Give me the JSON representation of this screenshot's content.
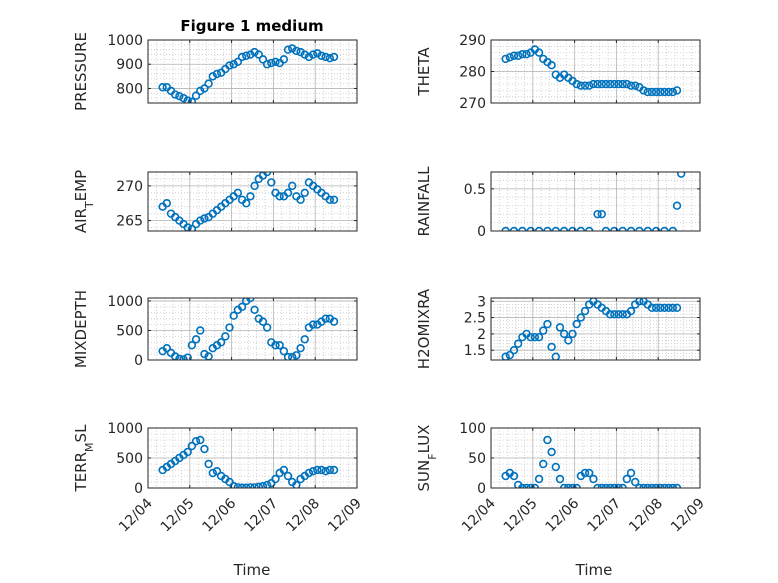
{
  "title": "Figure 1 medium",
  "colors": {
    "marker": "#0072BD",
    "grid": "#c8c8c8",
    "axis": "#262626"
  },
  "xaxis": {
    "label": "Time",
    "range": [
      0,
      5
    ],
    "tick_values": [
      0,
      1,
      2,
      3,
      4,
      5
    ],
    "tick_labels": [
      "12/04",
      "12/05",
      "12/06",
      "12/07",
      "12/08",
      "12/09"
    ],
    "minor_grid": true
  },
  "chart_data": [
    {
      "type": "scatter",
      "ylabel": "PRESSURE",
      "ylim": [
        740,
        1000
      ],
      "yticks": [
        800,
        900,
        1000
      ],
      "x": [
        0.35,
        0.45,
        0.55,
        0.65,
        0.75,
        0.85,
        0.95,
        1.05,
        1.15,
        1.25,
        1.35,
        1.45,
        1.55,
        1.65,
        1.75,
        1.85,
        1.95,
        2.05,
        2.15,
        2.25,
        2.35,
        2.45,
        2.55,
        2.65,
        2.75,
        2.85,
        2.95,
        3.05,
        3.15,
        3.25,
        3.35,
        3.45,
        3.55,
        3.65,
        3.75,
        3.85,
        3.95,
        4.05,
        4.15,
        4.25,
        4.35,
        4.45
      ],
      "y": [
        805,
        805,
        790,
        775,
        768,
        760,
        750,
        745,
        770,
        790,
        800,
        820,
        850,
        860,
        865,
        880,
        895,
        900,
        910,
        930,
        935,
        940,
        950,
        940,
        920,
        900,
        905,
        910,
        905,
        920,
        960,
        965,
        955,
        950,
        940,
        930,
        940,
        945,
        935,
        930,
        925,
        930
      ]
    },
    {
      "type": "scatter",
      "ylabel": "THETA",
      "ylim": [
        270,
        290
      ],
      "yticks": [
        270,
        280,
        290
      ],
      "x": [
        0.35,
        0.45,
        0.55,
        0.65,
        0.75,
        0.85,
        0.95,
        1.05,
        1.15,
        1.25,
        1.35,
        1.45,
        1.55,
        1.65,
        1.75,
        1.85,
        1.95,
        2.05,
        2.15,
        2.25,
        2.35,
        2.45,
        2.55,
        2.65,
        2.75,
        2.85,
        2.95,
        3.05,
        3.15,
        3.25,
        3.35,
        3.45,
        3.55,
        3.65,
        3.75,
        3.85,
        3.95,
        4.05,
        4.15,
        4.25,
        4.35,
        4.45
      ],
      "y": [
        284,
        284.5,
        285,
        285,
        285.5,
        285.5,
        286,
        287,
        286,
        284,
        283,
        282,
        279,
        278,
        279,
        278,
        277,
        276,
        275.5,
        275.5,
        275.5,
        276,
        276,
        276,
        276,
        276,
        276,
        276,
        276,
        276,
        275.5,
        275.5,
        275,
        274,
        273.5,
        273.5,
        273.5,
        273.5,
        273.5,
        273.5,
        273.5,
        274
      ]
    },
    {
      "type": "scatter",
      "ylabel": "AIRTEMP",
      "ylim": [
        263.5,
        272
      ],
      "yticks": [
        265,
        270
      ],
      "x": [
        0.35,
        0.45,
        0.55,
        0.65,
        0.75,
        0.85,
        0.95,
        1.05,
        1.15,
        1.25,
        1.35,
        1.45,
        1.55,
        1.65,
        1.75,
        1.85,
        1.95,
        2.05,
        2.15,
        2.25,
        2.35,
        2.45,
        2.55,
        2.65,
        2.75,
        2.85,
        2.95,
        3.05,
        3.15,
        3.25,
        3.35,
        3.45,
        3.55,
        3.65,
        3.75,
        3.85,
        3.95,
        4.05,
        4.15,
        4.25,
        4.35,
        4.45
      ],
      "y": [
        267,
        267.5,
        266,
        265.5,
        265,
        264.5,
        264,
        263.8,
        264.5,
        265,
        265.3,
        265.5,
        266,
        266.5,
        267,
        267.5,
        268,
        268.5,
        269,
        268,
        267.5,
        268.5,
        270,
        271,
        271.5,
        272,
        270.5,
        269,
        268.5,
        268.5,
        269,
        270,
        268.5,
        268,
        269,
        270.5,
        270,
        269.5,
        269,
        268.5,
        268,
        268
      ]
    },
    {
      "type": "scatter",
      "ylabel": "RAINFALL",
      "ylim": [
        0,
        0.7
      ],
      "yticks": [
        0,
        0.5
      ],
      "x": [
        0.35,
        0.55,
        0.75,
        0.95,
        1.15,
        1.35,
        1.55,
        1.75,
        1.95,
        2.15,
        2.35,
        2.55,
        2.65,
        2.75,
        2.95,
        3.15,
        3.35,
        3.55,
        3.75,
        3.95,
        4.15,
        4.35,
        4.45,
        4.55
      ],
      "y": [
        0,
        0,
        0,
        0,
        0,
        0,
        0,
        0,
        0,
        0,
        0,
        0.2,
        0.2,
        0,
        0,
        0,
        0,
        0,
        0,
        0,
        0,
        0,
        0.3,
        0.68
      ]
    },
    {
      "type": "scatter",
      "ylabel": "MIXDEPTH",
      "ylim": [
        0,
        1050
      ],
      "yticks": [
        0,
        500,
        1000
      ],
      "x": [
        0.35,
        0.45,
        0.55,
        0.65,
        0.75,
        0.85,
        0.95,
        1.05,
        1.15,
        1.25,
        1.35,
        1.45,
        1.55,
        1.65,
        1.75,
        1.85,
        1.95,
        2.05,
        2.15,
        2.25,
        2.35,
        2.45,
        2.55,
        2.65,
        2.75,
        2.85,
        2.95,
        3.05,
        3.15,
        3.25,
        3.35,
        3.45,
        3.55,
        3.65,
        3.75,
        3.85,
        3.95,
        4.05,
        4.15,
        4.25,
        4.35,
        4.45
      ],
      "y": [
        150,
        200,
        120,
        60,
        20,
        10,
        40,
        250,
        350,
        500,
        100,
        60,
        200,
        250,
        300,
        400,
        550,
        750,
        850,
        900,
        1000,
        1050,
        850,
        700,
        650,
        550,
        300,
        250,
        250,
        150,
        50,
        50,
        80,
        200,
        350,
        550,
        600,
        600,
        650,
        700,
        700,
        650
      ]
    },
    {
      "type": "scatter",
      "ylabel": "H2OMIXRA",
      "ylim": [
        1.2,
        3.1
      ],
      "yticks": [
        1.5,
        2,
        2.5,
        3
      ],
      "x": [
        0.35,
        0.45,
        0.55,
        0.65,
        0.75,
        0.85,
        0.95,
        1.05,
        1.15,
        1.25,
        1.35,
        1.45,
        1.55,
        1.65,
        1.75,
        1.85,
        1.95,
        2.05,
        2.15,
        2.25,
        2.35,
        2.45,
        2.55,
        2.65,
        2.75,
        2.85,
        2.95,
        3.05,
        3.15,
        3.25,
        3.35,
        3.45,
        3.55,
        3.65,
        3.75,
        3.85,
        3.95,
        4.05,
        4.15,
        4.25,
        4.35,
        4.45
      ],
      "y": [
        1.3,
        1.35,
        1.5,
        1.7,
        1.9,
        2.0,
        1.9,
        1.9,
        1.9,
        2.1,
        2.3,
        1.6,
        1.3,
        2.2,
        2.0,
        1.8,
        2.0,
        2.3,
        2.5,
        2.7,
        2.9,
        3.0,
        2.9,
        2.8,
        2.7,
        2.6,
        2.6,
        2.6,
        2.6,
        2.6,
        2.7,
        2.9,
        3.0,
        3.0,
        2.9,
        2.8,
        2.8,
        2.8,
        2.8,
        2.8,
        2.8,
        2.8
      ]
    },
    {
      "type": "scatter",
      "ylabel": "TERRMSL",
      "ylim": [
        0,
        1000
      ],
      "yticks": [
        0,
        500,
        1000
      ],
      "x": [
        0.35,
        0.45,
        0.55,
        0.65,
        0.75,
        0.85,
        0.95,
        1.05,
        1.15,
        1.25,
        1.35,
        1.45,
        1.55,
        1.65,
        1.75,
        1.85,
        1.95,
        2.05,
        2.15,
        2.25,
        2.35,
        2.45,
        2.55,
        2.65,
        2.75,
        2.85,
        2.95,
        3.05,
        3.15,
        3.25,
        3.35,
        3.45,
        3.55,
        3.65,
        3.75,
        3.85,
        3.95,
        4.05,
        4.15,
        4.25,
        4.35,
        4.45
      ],
      "y": [
        300,
        350,
        400,
        450,
        500,
        550,
        600,
        700,
        780,
        800,
        650,
        400,
        250,
        280,
        200,
        150,
        100,
        30,
        10,
        5,
        5,
        10,
        10,
        20,
        30,
        50,
        80,
        150,
        250,
        300,
        200,
        100,
        50,
        150,
        200,
        250,
        280,
        300,
        300,
        280,
        300,
        300
      ]
    },
    {
      "type": "scatter",
      "ylabel": "SUNFLUX",
      "ylim": [
        0,
        100
      ],
      "yticks": [
        0,
        50,
        100
      ],
      "x": [
        0.35,
        0.45,
        0.55,
        0.65,
        0.75,
        0.85,
        0.95,
        1.05,
        1.15,
        1.25,
        1.35,
        1.45,
        1.55,
        1.65,
        1.75,
        1.85,
        1.95,
        2.05,
        2.15,
        2.25,
        2.35,
        2.45,
        2.55,
        2.65,
        2.75,
        2.85,
        2.95,
        3.05,
        3.15,
        3.25,
        3.35,
        3.45,
        3.55,
        3.65,
        3.75,
        3.85,
        3.95,
        4.05,
        4.15,
        4.25,
        4.35,
        4.45
      ],
      "y": [
        20,
        25,
        20,
        5,
        0,
        0,
        0,
        0,
        15,
        40,
        80,
        60,
        35,
        15,
        0,
        0,
        0,
        0,
        20,
        25,
        25,
        15,
        0,
        0,
        0,
        0,
        0,
        0,
        0,
        15,
        25,
        10,
        0,
        0,
        0,
        0,
        0,
        0,
        0,
        0,
        0,
        0
      ]
    }
  ]
}
